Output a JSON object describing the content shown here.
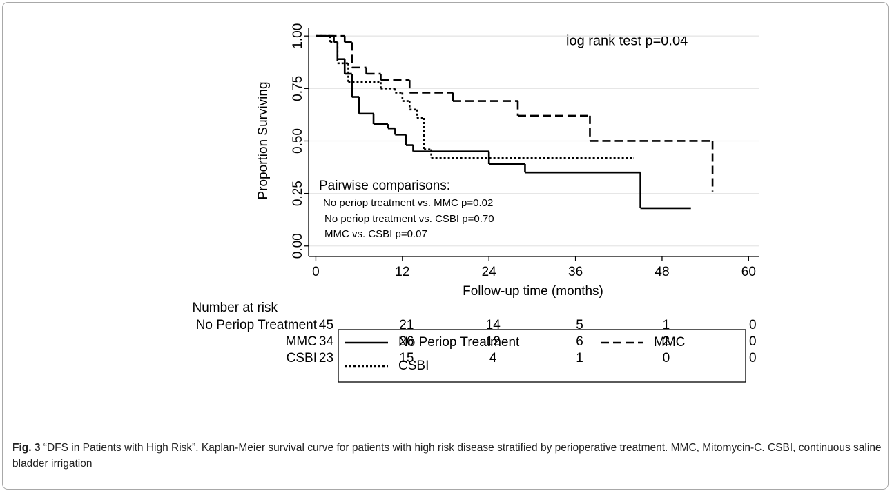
{
  "chart_data": {
    "type": "line",
    "step": "post",
    "y_label": "Proportion Surviving",
    "x_label": "Follow-up time (months)",
    "xlim": [
      -1,
      61.5
    ],
    "ylim": [
      -0.05,
      1.04
    ],
    "xticks": [
      0,
      12,
      24,
      36,
      48,
      60
    ],
    "yticks": [
      {
        "value": 0,
        "label": "0.00"
      },
      {
        "value": 0.25,
        "label": "0.25"
      },
      {
        "value": 0.5,
        "label": "0.50"
      },
      {
        "value": 0.75,
        "label": "0.75"
      },
      {
        "value": 1,
        "label": "1.00"
      }
    ],
    "grid": true,
    "legend": "bottom",
    "annotations": [
      "log rank test p=0.04",
      "Pairwise comparisons:",
      "No periop treatment vs. MMC p=0.02",
      "No periop treatment vs. CSBI p=0.70",
      "MMC vs. CSBI p=0.07"
    ],
    "series": [
      {
        "name": "No Periop Treatment",
        "color": "#000000",
        "style": "solid",
        "x": [
          0,
          2.5,
          3,
          4,
          5,
          6,
          8,
          10,
          11,
          12.5,
          13.5,
          24,
          29,
          45,
          52
        ],
        "values": [
          1,
          0.97,
          0.89,
          0.82,
          0.71,
          0.63,
          0.58,
          0.56,
          0.53,
          0.48,
          0.45,
          0.39,
          0.35,
          0.18,
          0.18
        ]
      },
      {
        "name": "MMC",
        "color": "#000000",
        "style": "dashed",
        "x": [
          0,
          4,
          5,
          7,
          9,
          13,
          19,
          28,
          38,
          55
        ],
        "values": [
          1,
          0.97,
          0.85,
          0.82,
          0.79,
          0.73,
          0.69,
          0.62,
          0.5,
          0.26
        ]
      },
      {
        "name": "CSBI",
        "color": "#000000",
        "style": "dotted",
        "x": [
          0,
          2,
          3,
          4.5,
          9,
          11,
          12,
          13,
          14,
          15,
          16,
          44
        ],
        "values": [
          1,
          0.97,
          0.87,
          0.78,
          0.75,
          0.73,
          0.69,
          0.65,
          0.61,
          0.46,
          0.42,
          0.42
        ]
      }
    ],
    "risk_table": {
      "title": "Number at risk",
      "rows": [
        {
          "name": "No Periop Treatment",
          "counts": [
            45,
            21,
            14,
            5,
            1,
            0
          ]
        },
        {
          "name": "MMC",
          "counts": [
            34,
            26,
            12,
            6,
            2,
            0
          ]
        },
        {
          "name": "CSBI",
          "counts": [
            23,
            15,
            4,
            1,
            0,
            0
          ]
        }
      ]
    }
  },
  "caption": {
    "label": "Fig. 3",
    "text": "“DFS in Patients with High Risk”. Kaplan-Meier survival curve for patients with high risk disease stratified by perioperative treatment. MMC, Mitomycin-C. CSBI, continuous saline bladder irrigation"
  }
}
